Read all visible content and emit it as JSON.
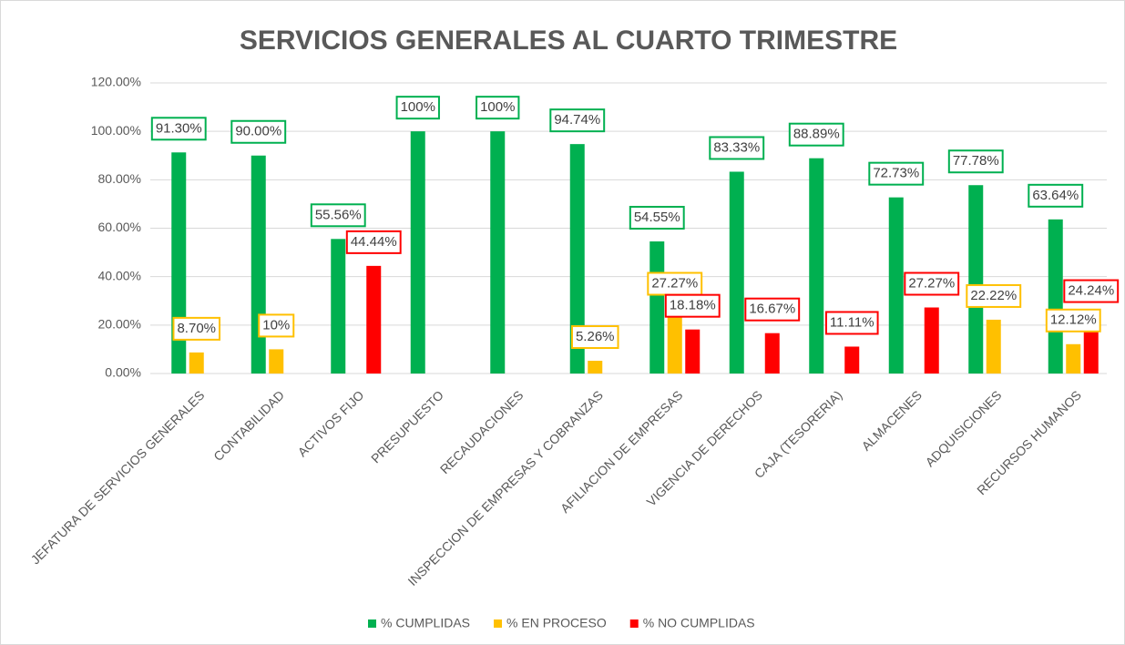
{
  "chart_data": {
    "type": "bar",
    "title": "SERVICIOS GENERALES AL CUARTO TRIMESTRE",
    "categories": [
      "JEFATURA DE SERVICIOS GENERALES",
      "CONTABILIDAD",
      "ACTIVOS FIJO",
      "PRESUPUESTO",
      "RECAUDACIONES",
      "INSPECCION DE EMPRESAS Y COBRANZAS",
      "AFILIACION DE EMPRESAS",
      "VIGENCIA DE DERECHOS",
      "CAJA (TESORERIA)",
      "ALMACENES",
      "ADQUISICIONES",
      "RECURSOS HUMANOS"
    ],
    "series": [
      {
        "name": "% CUMPLIDAS",
        "color": "#00b050",
        "values": [
          91.3,
          90,
          55.56,
          100,
          100,
          94.74,
          54.55,
          83.33,
          88.89,
          72.73,
          77.78,
          63.64
        ],
        "value_labels": [
          "91.30%",
          "90.00%",
          "55.56%",
          "100%",
          "100%",
          "94.74%",
          "54.55%",
          "83.33%",
          "88.89%",
          "72.73%",
          "77.78%",
          "63.64%"
        ]
      },
      {
        "name": "% EN PROCESO",
        "color": "#ffc000",
        "values": [
          8.7,
          10,
          null,
          null,
          null,
          5.26,
          27.27,
          null,
          null,
          null,
          22.22,
          12.12
        ],
        "value_labels": [
          "8.70%",
          "10%",
          null,
          null,
          null,
          "5.26%",
          "27.27%",
          null,
          null,
          null,
          "22.22%",
          "12.12%"
        ]
      },
      {
        "name": "% NO CUMPLIDAS",
        "color": "#ff0000",
        "values": [
          null,
          null,
          44.44,
          null,
          null,
          null,
          18.18,
          16.67,
          11.11,
          27.27,
          null,
          24.24
        ],
        "value_labels": [
          null,
          null,
          "44.44%",
          null,
          null,
          null,
          "18.18%",
          "16.67%",
          "11.11%",
          "27.27%",
          null,
          "24.24%"
        ]
      }
    ],
    "ylim": [
      0,
      120
    ],
    "yticks": [
      {
        "value": 0,
        "label": "0.00%"
      },
      {
        "value": 20,
        "label": "20.00%"
      },
      {
        "value": 40,
        "label": "40.00%"
      },
      {
        "value": 60,
        "label": "60.00%"
      },
      {
        "value": 80,
        "label": "80.00%"
      },
      {
        "value": 100,
        "label": "100.00%"
      },
      {
        "value": 120,
        "label": "120.00%"
      }
    ],
    "grid": true,
    "legend": "bottom"
  }
}
